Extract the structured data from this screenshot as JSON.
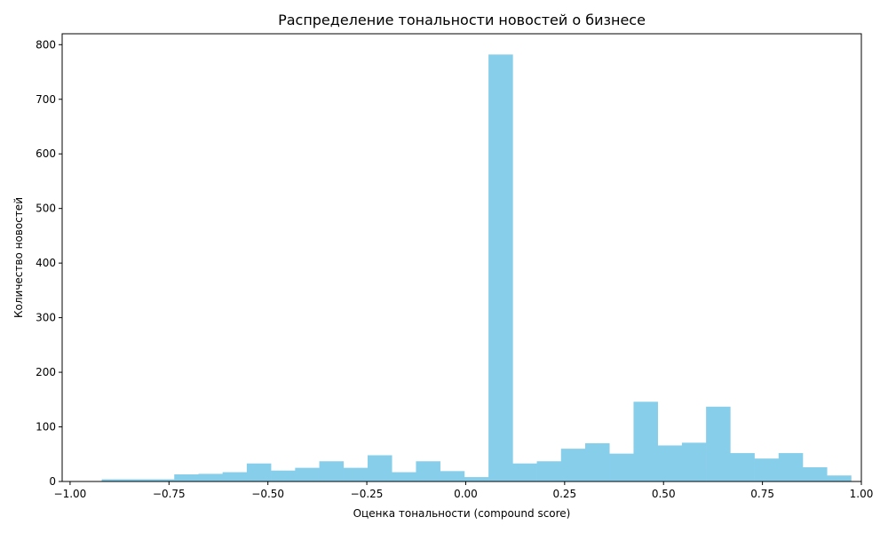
{
  "chart_data": {
    "type": "bar",
    "subtype": "histogram",
    "title": "Распределение тональности новостей о бизнесе",
    "xlabel": "Оценка тональности (compound score)",
    "ylabel": "Количество новостей",
    "xlim": [
      -1.02,
      1.0
    ],
    "ylim": [
      0,
      820
    ],
    "grid": false,
    "legend": "none",
    "bar_color": "#87ceeb",
    "x_ticks": [
      -1.0,
      -0.75,
      -0.5,
      -0.25,
      0.0,
      0.25,
      0.5,
      0.75,
      1.0
    ],
    "x_tick_labels": [
      "−1.00",
      "−0.75",
      "−0.50",
      "−0.25",
      "0.00",
      "0.25",
      "0.50",
      "0.75",
      "1.00"
    ],
    "y_ticks": [
      0,
      100,
      200,
      300,
      400,
      500,
      600,
      700,
      800
    ],
    "y_tick_labels": [
      "0",
      "100",
      "200",
      "300",
      "400",
      "500",
      "600",
      "700",
      "800"
    ],
    "bin_start": -0.92,
    "bin_width": 0.0611,
    "counts": [
      4,
      4,
      4,
      13,
      14,
      17,
      33,
      20,
      25,
      37,
      25,
      48,
      17,
      37,
      19,
      8,
      782,
      33,
      37,
      60,
      70,
      51,
      146,
      66,
      71,
      137,
      52,
      42,
      52,
      26,
      11
    ]
  }
}
